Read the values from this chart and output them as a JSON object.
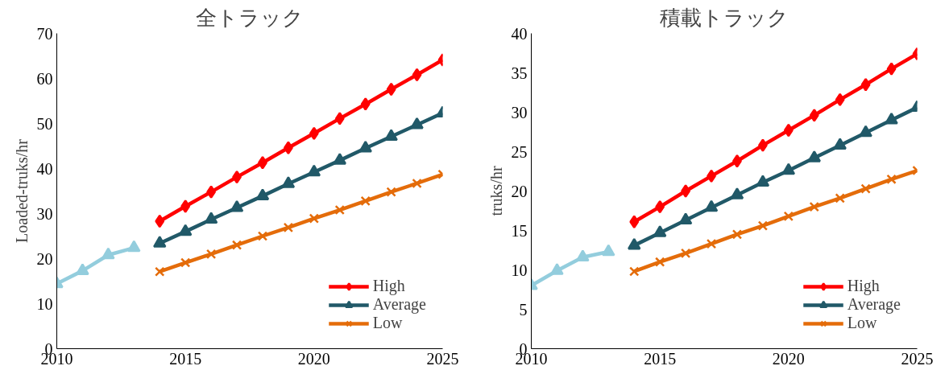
{
  "chart_data": [
    {
      "type": "line",
      "title": "全トラック",
      "ylabel": "Loaded-truks/hr",
      "xlim": [
        2010,
        2025
      ],
      "xticks": [
        2010,
        2015,
        2020,
        2025
      ],
      "ylim": [
        0,
        70
      ],
      "yticks": [
        0,
        10,
        20,
        30,
        40,
        50,
        60,
        70
      ],
      "grid": false,
      "legend": "bottom right",
      "line_style": "solid",
      "series": [
        {
          "color": "#93cddd",
          "marker": "triangle",
          "x": [
            2010,
            2011,
            2012,
            2013
          ],
          "values": [
            14.4,
            17.3,
            20.8,
            22.4
          ]
        },
        {
          "name": "High",
          "color": "#ff0000",
          "marker": "diamond",
          "x": [
            2014,
            2015,
            2016,
            2017,
            2018,
            2019,
            2020,
            2021,
            2022,
            2023,
            2024,
            2025
          ],
          "values": [
            28.3,
            31.6,
            34.8,
            38.1,
            41.3,
            44.6,
            47.8,
            51.1,
            54.3,
            57.6,
            60.8,
            64.1
          ]
        },
        {
          "name": "Average",
          "color": "#215968",
          "marker": "triangle",
          "x": [
            2014,
            2015,
            2016,
            2017,
            2018,
            2019,
            2020,
            2021,
            2022,
            2023,
            2024,
            2025
          ],
          "values": [
            23.4,
            26.0,
            28.7,
            31.3,
            33.9,
            36.6,
            39.2,
            41.8,
            44.5,
            47.1,
            49.7,
            52.3
          ]
        },
        {
          "name": "Low",
          "color": "#e46c0a",
          "marker": "cross",
          "x": [
            2014,
            2015,
            2016,
            2017,
            2018,
            2019,
            2020,
            2021,
            2022,
            2023,
            2024,
            2025
          ],
          "values": [
            17.1,
            19.1,
            21.0,
            23.0,
            25.0,
            26.9,
            28.9,
            30.8,
            32.8,
            34.8,
            36.7,
            38.7
          ]
        }
      ]
    },
    {
      "type": "line",
      "title": "積載トラック",
      "ylabel": "truks/hr",
      "xlim": [
        2010,
        2025
      ],
      "xticks": [
        2010,
        2015,
        2020,
        2025
      ],
      "ylim": [
        0,
        40
      ],
      "yticks": [
        0,
        5,
        10,
        15,
        20,
        25,
        30,
        35,
        40
      ],
      "grid": false,
      "legend": "bottom right",
      "line_style": "solid",
      "series": [
        {
          "color": "#93cddd",
          "marker": "triangle",
          "x": [
            2010,
            2011,
            2012,
            2013
          ],
          "values": [
            8.0,
            9.9,
            11.6,
            12.3
          ]
        },
        {
          "name": "High",
          "color": "#ff0000",
          "marker": "diamond",
          "x": [
            2014,
            2015,
            2016,
            2017,
            2018,
            2019,
            2020,
            2021,
            2022,
            2023,
            2024,
            2025
          ],
          "values": [
            16.1,
            18.0,
            20.0,
            21.9,
            23.8,
            25.8,
            27.7,
            29.6,
            31.6,
            33.5,
            35.5,
            37.4
          ]
        },
        {
          "name": "Average",
          "color": "#215968",
          "marker": "triangle",
          "x": [
            2014,
            2015,
            2016,
            2017,
            2018,
            2019,
            2020,
            2021,
            2022,
            2023,
            2024,
            2025
          ],
          "values": [
            13.1,
            14.7,
            16.3,
            17.9,
            19.5,
            21.1,
            22.6,
            24.2,
            25.8,
            27.4,
            29.0,
            30.6
          ]
        },
        {
          "name": "Low",
          "color": "#e46c0a",
          "marker": "cross",
          "x": [
            2014,
            2015,
            2016,
            2017,
            2018,
            2019,
            2020,
            2021,
            2022,
            2023,
            2024,
            2025
          ],
          "values": [
            9.8,
            11.0,
            12.1,
            13.3,
            14.5,
            15.6,
            16.8,
            18.0,
            19.1,
            20.3,
            21.5,
            22.6
          ]
        }
      ]
    }
  ]
}
